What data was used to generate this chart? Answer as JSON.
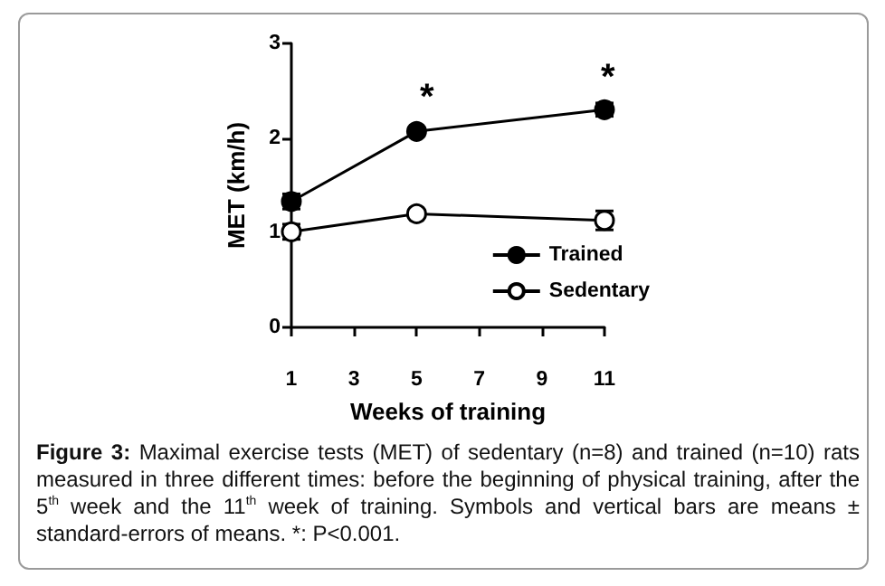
{
  "chart_data": {
    "type": "line",
    "xlabel": "Weeks of training",
    "ylabel": "MET (km/h)",
    "x": [
      1,
      5,
      11
    ],
    "series": [
      {
        "name": "Trained",
        "color": "#000000",
        "values": [
          1.33,
          2.07,
          2.3
        ],
        "errors": [
          0.08,
          null,
          0.07
        ]
      },
      {
        "name": "Sedentary",
        "color": "#000000",
        "values": [
          1.01,
          1.2,
          1.13
        ],
        "errors": [
          0.08,
          null,
          0.1
        ]
      }
    ],
    "xlim": [
      1,
      11
    ],
    "xticks": [
      1,
      3,
      5,
      7,
      9,
      11
    ],
    "ylim": [
      0,
      3
    ],
    "yticks": [
      0,
      1,
      2,
      3
    ],
    "grid": false,
    "legend": "bottom right",
    "marker": "circle",
    "line_style": "solid",
    "annotations": [
      "*",
      "*",
      "Figure 3: Maximal exercise tests (MET) of sedentary (n=8) and trained (n=10) rats measured in three different times: before the beginning of physical training, after the 5$^{th}$ week and the 11$^{th}$ week of training. Symbols and vertical bars are means ± standard-errors of means. *: P<0.001."
    ]
  }
}
